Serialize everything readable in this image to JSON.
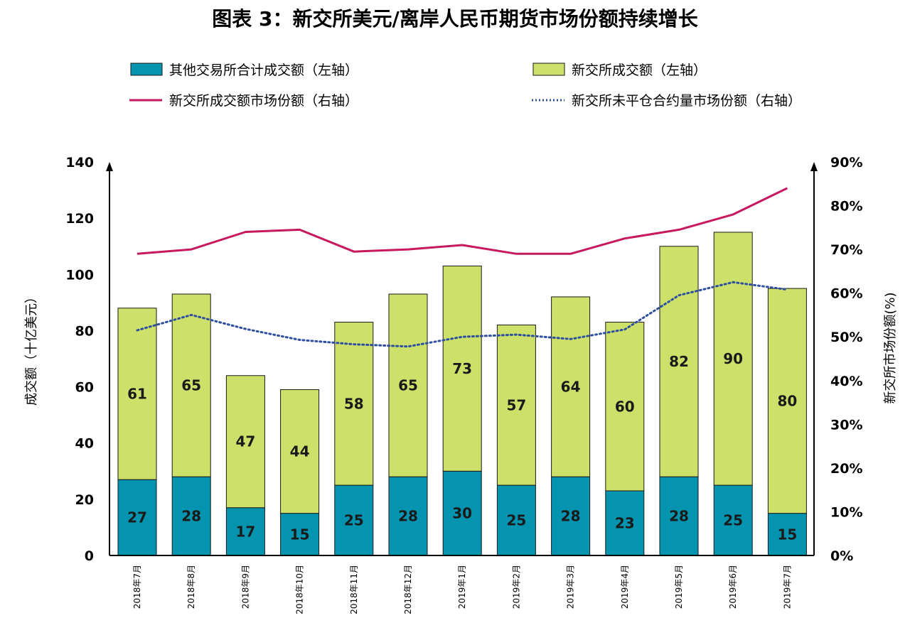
{
  "chart_data": {
    "type": "bar",
    "title": "图表 3：新交所美元/离岸人民币期货市场份额持续增长",
    "categories": [
      "2018年7月",
      "2018年8月",
      "2018年9月",
      "2018年10月",
      "2018年11月",
      "2018年12月",
      "2019年1月",
      "2019年2月",
      "2019年3月",
      "2019年4月",
      "2019年5月",
      "2019年6月",
      "2019年7月"
    ],
    "series": [
      {
        "name": "其他交易所合计成交额（左轴）",
        "kind": "stacked-bar",
        "axis": "left",
        "color": "#0494B0",
        "values": [
          27,
          28,
          17,
          15,
          25,
          28,
          30,
          25,
          28,
          23,
          28,
          25,
          15
        ]
      },
      {
        "name": "新交所成交额（左轴）",
        "kind": "stacked-bar",
        "axis": "left",
        "color": "#CDE06A",
        "values": [
          61,
          65,
          47,
          44,
          58,
          65,
          73,
          57,
          64,
          60,
          82,
          90,
          80
        ]
      },
      {
        "name": "新交所成交额市场份额（右轴）",
        "kind": "line",
        "axis": "right",
        "color": "#C8185F",
        "values": [
          69,
          70,
          74,
          74.5,
          69.5,
          70,
          71,
          69,
          69,
          72.5,
          74.5,
          78,
          84
        ]
      },
      {
        "name": "新交所未平仓合约量市场份额（右轴）",
        "kind": "dotted-line",
        "axis": "right",
        "color": "#2E4FA0",
        "values": [
          51.5,
          55,
          51.8,
          49.3,
          48.3,
          47.8,
          50,
          50.5,
          49.5,
          51.7,
          59.5,
          62.5,
          60.8
        ]
      }
    ],
    "ylabel": "成交额（十亿美元）",
    "ylabel_right": "新交所市场份额(%)",
    "ylim": [
      0,
      140
    ],
    "yticks": [
      "0",
      "20",
      "40",
      "60",
      "80",
      "100",
      "120",
      "140"
    ],
    "ylim_right": [
      0,
      90
    ],
    "yticks_right": [
      "0%",
      "10%",
      "20%",
      "30%",
      "40%",
      "50%",
      "60%",
      "70%",
      "80%",
      "90%"
    ],
    "legend_placement": "top"
  }
}
